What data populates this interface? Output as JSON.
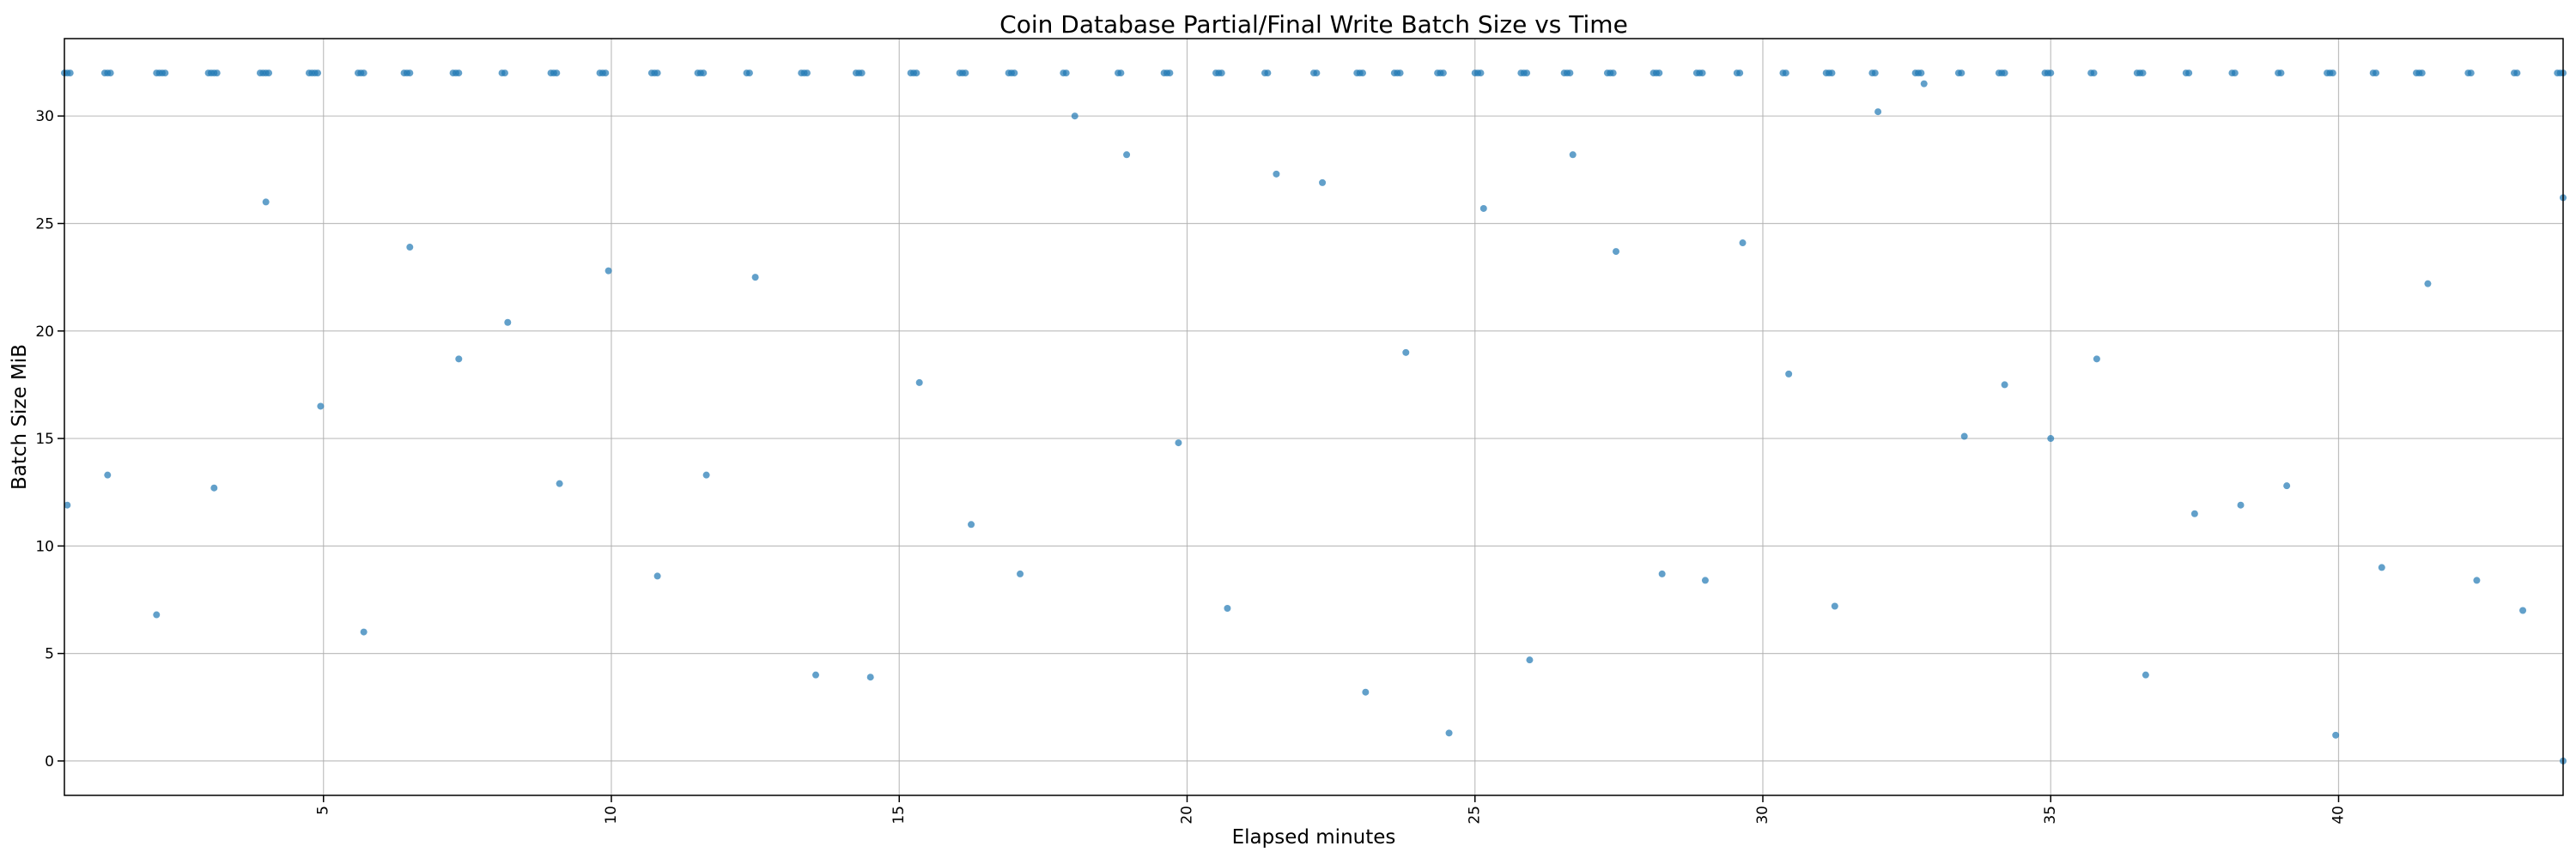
{
  "chart_data": {
    "type": "scatter",
    "title": "Coin Database Partial/Final Write Batch Size vs Time",
    "xlabel": "Elapsed minutes",
    "ylabel": "Batch Size MiB",
    "xlim": [
      0.5,
      43.9
    ],
    "ylim": [
      -1.6,
      33.6
    ],
    "xticks": [
      5,
      10,
      15,
      20,
      25,
      30,
      35,
      40
    ],
    "yticks": [
      0,
      5,
      10,
      15,
      20,
      25,
      30
    ],
    "grid": true,
    "marker_color": "#1f77b4",
    "full_batch_size": 32,
    "full_batch_x": [
      0.5,
      0.55,
      0.6,
      1.2,
      1.25,
      1.3,
      2.1,
      2.15,
      2.2,
      2.25,
      3.0,
      3.05,
      3.1,
      3.15,
      3.9,
      3.95,
      4.0,
      4.05,
      4.75,
      4.8,
      4.85,
      4.9,
      5.6,
      5.65,
      5.7,
      6.4,
      6.45,
      6.5,
      7.25,
      7.3,
      7.35,
      8.1,
      8.15,
      8.95,
      9.0,
      9.05,
      9.8,
      9.85,
      9.9,
      10.7,
      10.75,
      10.8,
      11.5,
      11.55,
      11.6,
      12.35,
      12.4,
      13.3,
      13.35,
      13.4,
      14.25,
      14.3,
      14.35,
      15.2,
      15.25,
      15.3,
      16.05,
      16.1,
      16.15,
      16.9,
      16.95,
      17.0,
      17.85,
      17.9,
      18.8,
      18.85,
      19.6,
      19.65,
      19.7,
      20.5,
      20.55,
      20.6,
      21.35,
      21.4,
      22.2,
      22.25,
      22.95,
      23.0,
      23.05,
      23.6,
      23.65,
      23.7,
      24.35,
      24.4,
      24.45,
      25.0,
      25.05,
      25.1,
      25.8,
      25.85,
      25.9,
      26.55,
      26.6,
      26.65,
      27.3,
      27.35,
      27.4,
      28.1,
      28.15,
      28.2,
      28.85,
      28.9,
      28.95,
      29.55,
      29.6,
      30.35,
      30.4,
      31.1,
      31.15,
      31.2,
      31.9,
      31.95,
      32.65,
      32.7,
      32.75,
      33.4,
      33.45,
      34.1,
      34.15,
      34.2,
      34.9,
      34.95,
      35.0,
      35.7,
      35.75,
      36.5,
      36.55,
      36.6,
      37.35,
      37.4,
      38.15,
      38.2,
      38.95,
      39.0,
      39.8,
      39.85,
      39.9,
      40.6,
      40.65,
      41.35,
      41.4,
      41.45,
      42.25,
      42.3,
      43.05,
      43.1,
      43.8,
      43.85,
      43.9
    ],
    "partial_points": [
      [
        0.55,
        11.9
      ],
      [
        1.25,
        13.3
      ],
      [
        2.1,
        6.8
      ],
      [
        3.1,
        12.7
      ],
      [
        4.0,
        26.0
      ],
      [
        4.95,
        16.5
      ],
      [
        5.7,
        6.0
      ],
      [
        6.5,
        23.9
      ],
      [
        7.35,
        18.7
      ],
      [
        8.2,
        20.4
      ],
      [
        9.1,
        12.9
      ],
      [
        9.95,
        22.8
      ],
      [
        10.8,
        8.6
      ],
      [
        11.65,
        13.3
      ],
      [
        12.5,
        22.5
      ],
      [
        13.55,
        4.0
      ],
      [
        14.5,
        3.9
      ],
      [
        15.35,
        17.6
      ],
      [
        16.25,
        11.0
      ],
      [
        17.1,
        8.7
      ],
      [
        18.05,
        30.0
      ],
      [
        18.95,
        28.2
      ],
      [
        19.85,
        14.8
      ],
      [
        20.7,
        7.1
      ],
      [
        21.55,
        27.3
      ],
      [
        22.35,
        26.9
      ],
      [
        23.1,
        3.2
      ],
      [
        23.8,
        19.0
      ],
      [
        24.55,
        1.3
      ],
      [
        25.15,
        25.7
      ],
      [
        25.95,
        4.7
      ],
      [
        26.7,
        28.2
      ],
      [
        27.45,
        23.7
      ],
      [
        28.25,
        8.7
      ],
      [
        29.0,
        8.4
      ],
      [
        29.65,
        24.1
      ],
      [
        30.45,
        18.0
      ],
      [
        31.25,
        7.2
      ],
      [
        32.0,
        30.2
      ],
      [
        32.8,
        31.5
      ],
      [
        33.5,
        15.1
      ],
      [
        34.2,
        17.5
      ],
      [
        35.0,
        15.0
      ],
      [
        35.8,
        18.7
      ],
      [
        36.65,
        4.0
      ],
      [
        37.5,
        11.5
      ],
      [
        38.3,
        11.9
      ],
      [
        39.1,
        12.8
      ],
      [
        39.95,
        1.2
      ],
      [
        40.75,
        9.0
      ],
      [
        41.55,
        22.2
      ],
      [
        42.4,
        8.4
      ],
      [
        43.2,
        7.0
      ],
      [
        43.9,
        26.2
      ],
      [
        43.9,
        0.0
      ]
    ]
  }
}
